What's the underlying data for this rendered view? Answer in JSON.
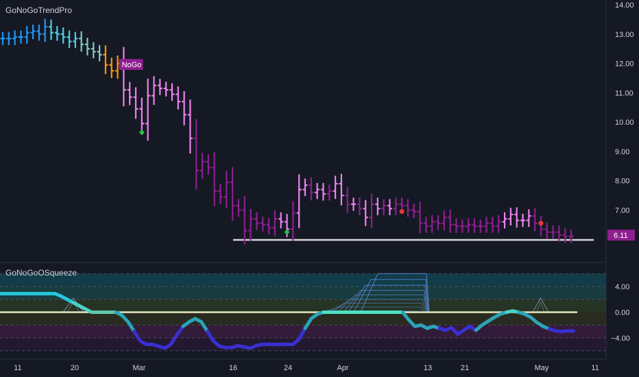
{
  "top_indicator": {
    "title": "GoNoGoTrendPro",
    "badge": "NoGo",
    "last_price_label": "6.11"
  },
  "bottom_indicator": {
    "title": "GoNoGoOSqueeze"
  },
  "colors": {
    "background": "#151924",
    "axis_text": "#d1d4dc",
    "grid_line": "#2a2e39",
    "strong_go": "#2196f3",
    "go": "#4dd0e1",
    "weak_go": "#80cbc4",
    "nogo_weak": "#ff9800",
    "nogo": "#e040fb",
    "strong_nogo": "#8e1f8f",
    "light_nogo": "#ee82ee",
    "support_line": "#d8d8d8",
    "squeeze_zero": "#e8e8c0",
    "price_badge": "#8e1f8f"
  },
  "chart_data": [
    {
      "type": "ohlc",
      "title": "GoNoGoTrendPro",
      "y_ticks": [
        "14.00",
        "13.00",
        "12.00",
        "11.00",
        "10.00",
        "9.00",
        "8.00",
        "7.00",
        "6.11"
      ],
      "ylim": [
        5.9,
        14.2
      ],
      "x_ticks": [
        "11",
        "20",
        "Mar",
        "16",
        "24",
        "Apr",
        "13",
        "21",
        "May",
        "11"
      ],
      "last_value": 6.11,
      "support_level": 6.0,
      "annotations": [
        "NoGo"
      ],
      "bar_closes": [
        12.85,
        12.85,
        12.9,
        12.9,
        13.05,
        13.1,
        13.0,
        13.25,
        13.05,
        13.0,
        12.9,
        12.75,
        12.85,
        12.65,
        12.5,
        12.4,
        12.3,
        11.95,
        11.75,
        12.0,
        11.1,
        10.85,
        10.45,
        9.95,
        10.9,
        11.25,
        11.15,
        11.1,
        10.95,
        10.7,
        10.25,
        9.45,
        8.35,
        8.65,
        8.45,
        7.65,
        7.45,
        7.95,
        7.15,
        7.0,
        6.3,
        6.7,
        6.55,
        6.5,
        6.4,
        6.7,
        6.6,
        6.35,
        6.9,
        7.7,
        7.85,
        7.6,
        7.7,
        7.55,
        7.65,
        7.9,
        7.5,
        7.2,
        7.2,
        7.05,
        6.75,
        7.2,
        7.05,
        7.15,
        7.05,
        7.2,
        7.15,
        7.0,
        6.95,
        6.55,
        6.45,
        6.6,
        6.55,
        6.75,
        6.5,
        6.45,
        6.45,
        6.5,
        6.45,
        6.45,
        6.55,
        6.45,
        6.6,
        6.7,
        6.85,
        6.65,
        6.65,
        6.8,
        6.55,
        6.35,
        6.25,
        6.25,
        6.15,
        6.1,
        6.11
      ],
      "markers": [
        {
          "bar": 23,
          "price": 9.65,
          "kind": "green-diamond"
        },
        {
          "bar": 47,
          "price": 6.25,
          "kind": "green-diamond"
        },
        {
          "bar": 66,
          "price": 6.95,
          "kind": "red-dot"
        },
        {
          "bar": 89,
          "price": 6.55,
          "kind": "red-dot"
        }
      ]
    },
    {
      "type": "line",
      "title": "GoNoGoOSqueeze",
      "y_ticks": [
        "4.00",
        "0.00",
        "−4.00"
      ],
      "ylim": [
        -6,
        6
      ],
      "zero_line": 0,
      "oscillator_values": [
        2.9,
        2.9,
        2.9,
        2.9,
        2.9,
        2.9,
        2.9,
        2.9,
        2.9,
        2.9,
        2.5,
        2.0,
        1.5,
        1.0,
        0.5,
        0,
        0,
        0,
        0,
        0,
        -0.5,
        -1.5,
        -3.0,
        -4.5,
        -5.0,
        -5.0,
        -5.3,
        -5.6,
        -5.0,
        -3.5,
        -2.2,
        -1.5,
        -1.0,
        -1.5,
        -3.0,
        -4.5,
        -5.3,
        -5.5,
        -5.5,
        -5.2,
        -5.4,
        -5.6,
        -5.2,
        -5.0,
        -5.0,
        -5.0,
        -5.0,
        -5.0,
        -5.0,
        -4.2,
        -2.5,
        -1.0,
        -0.3,
        0,
        0,
        0,
        0,
        0,
        0,
        0,
        0,
        0,
        0,
        0,
        0,
        0,
        0,
        -1.2,
        -2.2,
        -2.0,
        -2.5,
        -2.2,
        -2.5,
        -2.8,
        -2.4,
        -3.4,
        -2.8,
        -2.2,
        -2.8,
        -2.0,
        -1.4,
        -0.8,
        -0.3,
        0,
        0.2,
        0,
        -0.3,
        -0.8,
        -1.6,
        -2.2,
        -2.6,
        -2.9,
        -3.0,
        -2.9,
        -2.9
      ]
    }
  ]
}
